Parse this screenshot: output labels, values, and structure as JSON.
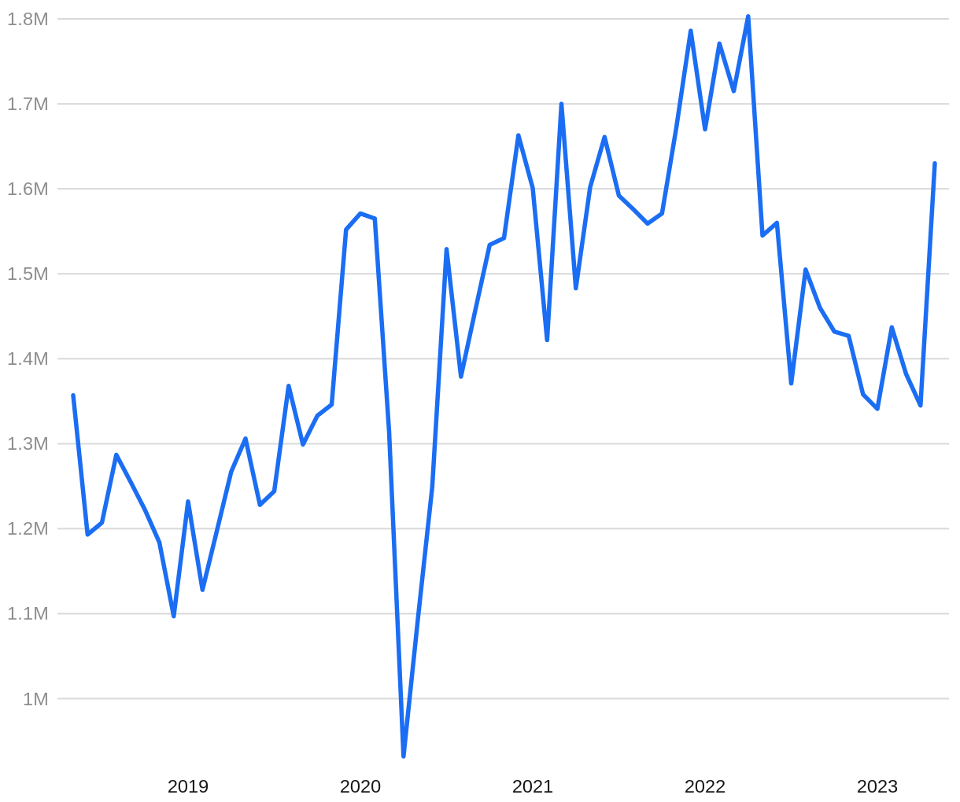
{
  "chart_data": {
    "type": "line",
    "title": "",
    "xlabel": "",
    "ylabel": "",
    "unit": "millions",
    "grid": "horizontal-only",
    "legend": "none",
    "x_months": [
      "2018-05",
      "2018-06",
      "2018-07",
      "2018-08",
      "2018-09",
      "2018-10",
      "2018-11",
      "2018-12",
      "2019-01",
      "2019-02",
      "2019-03",
      "2019-04",
      "2019-05",
      "2019-06",
      "2019-07",
      "2019-08",
      "2019-09",
      "2019-10",
      "2019-11",
      "2019-12",
      "2020-01",
      "2020-02",
      "2020-03",
      "2020-04",
      "2020-05",
      "2020-06",
      "2020-07",
      "2020-08",
      "2020-09",
      "2020-10",
      "2020-11",
      "2020-12",
      "2021-01",
      "2021-02",
      "2021-03",
      "2021-04",
      "2021-05",
      "2021-06",
      "2021-07",
      "2021-08",
      "2021-09",
      "2021-10",
      "2021-11",
      "2021-12",
      "2022-01",
      "2022-02",
      "2022-03",
      "2022-04",
      "2022-05",
      "2022-06",
      "2022-07",
      "2022-08",
      "2022-09",
      "2022-10",
      "2022-11",
      "2022-12",
      "2023-01",
      "2023-02",
      "2023-03",
      "2023-04",
      "2023-05"
    ],
    "values_millions": [
      1.357,
      1.193,
      1.207,
      1.287,
      1.255,
      1.222,
      1.184,
      1.097,
      1.232,
      1.128,
      1.197,
      1.267,
      1.306,
      1.228,
      1.244,
      1.368,
      1.299,
      1.333,
      1.346,
      1.552,
      1.571,
      1.565,
      1.314,
      0.932,
      1.093,
      1.249,
      1.529,
      1.379,
      1.457,
      1.534,
      1.542,
      1.663,
      1.601,
      1.422,
      1.7,
      1.483,
      1.602,
      1.661,
      1.592,
      1.576,
      1.559,
      1.571,
      1.672,
      1.786,
      1.67,
      1.771,
      1.715,
      1.803,
      1.545,
      1.56,
      1.371,
      1.505,
      1.46,
      1.432,
      1.427,
      1.358,
      1.341,
      1.437,
      1.382,
      1.345,
      1.63
    ],
    "y_ticks": [
      {
        "label": "1M",
        "value": 1.0
      },
      {
        "label": "1.1M",
        "value": 1.1
      },
      {
        "label": "1.2M",
        "value": 1.2
      },
      {
        "label": "1.3M",
        "value": 1.3
      },
      {
        "label": "1.4M",
        "value": 1.4
      },
      {
        "label": "1.5M",
        "value": 1.5
      },
      {
        "label": "1.6M",
        "value": 1.6
      },
      {
        "label": "1.7M",
        "value": 1.7
      },
      {
        "label": "1.8M",
        "value": 1.8
      }
    ],
    "x_year_labels": [
      {
        "label": "2019",
        "at_month": "2019-01"
      },
      {
        "label": "2020",
        "at_month": "2020-01"
      },
      {
        "label": "2021",
        "at_month": "2021-01"
      },
      {
        "label": "2022",
        "at_month": "2022-01"
      },
      {
        "label": "2023",
        "at_month": "2023-01"
      }
    ],
    "ylim_visible": [
      0.9,
      1.82
    ],
    "colors": {
      "line": "#1b6ef3",
      "grid": "#d9d9d9",
      "y_tick_text": "#8d8d8d",
      "x_tick_text": "#161616",
      "background": "#ffffff"
    }
  }
}
